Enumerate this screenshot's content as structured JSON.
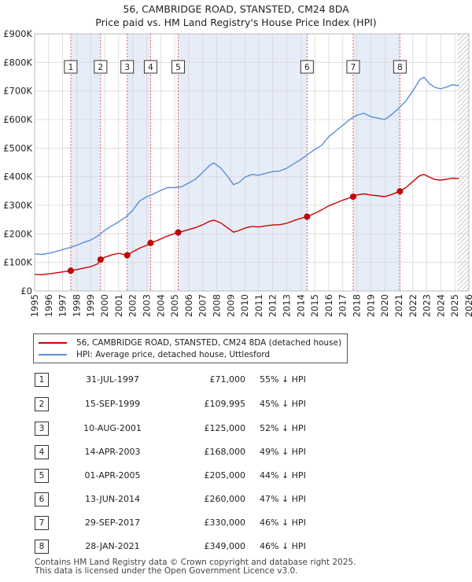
{
  "title": "56, CAMBRIDGE ROAD, STANSTED, CM24 8DA",
  "subtitle": "Price paid vs. HM Land Registry's House Price Index (HPI)",
  "legend": {
    "property": "56, CAMBRIDGE ROAD, STANSTED, CM24 8DA (detached house)",
    "hpi": "HPI: Average price, detached house, Uttlesford"
  },
  "colors": {
    "property": "#cc0000",
    "hpi": "#5b8fd4",
    "band": "#e6ecf8",
    "grid": "#d8d8d8",
    "future_hatch": "#999999"
  },
  "chart_data": {
    "type": "line",
    "title": "56, CAMBRIDGE ROAD, STANSTED, CM24 8DA",
    "subtitle": "Price paid vs. HM Land Registry's House Price Index (HPI)",
    "xlim": [
      1995,
      2026
    ],
    "ylim": [
      0,
      900000
    ],
    "x_ticks": [
      "1995",
      "1996",
      "1997",
      "1998",
      "1999",
      "2000",
      "2001",
      "2002",
      "2003",
      "2004",
      "2005",
      "2006",
      "2007",
      "2008",
      "2009",
      "2010",
      "2011",
      "2012",
      "2013",
      "2014",
      "2015",
      "2016",
      "2017",
      "2018",
      "2019",
      "2020",
      "2021",
      "2022",
      "2023",
      "2024",
      "2025",
      "2026"
    ],
    "y_ticks": [
      0,
      100000,
      200000,
      300000,
      400000,
      500000,
      600000,
      700000,
      800000,
      900000
    ],
    "y_tick_labels": [
      "£0",
      "£100K",
      "£200K",
      "£300K",
      "£400K",
      "£500K",
      "£600K",
      "£700K",
      "£800K",
      "£900K"
    ],
    "grid": true,
    "future_hatch_from": 2025.2,
    "series": [
      {
        "name": "HPI: Average price, detached house, Uttlesford",
        "color": "#5b8fd4",
        "points": [
          [
            1995.0,
            130000
          ],
          [
            1995.5,
            128000
          ],
          [
            1996.0,
            132000
          ],
          [
            1996.5,
            138000
          ],
          [
            1997.0,
            145000
          ],
          [
            1997.5,
            152000
          ],
          [
            1998.0,
            160000
          ],
          [
            1998.5,
            170000
          ],
          [
            1999.0,
            178000
          ],
          [
            1999.5,
            192000
          ],
          [
            2000.0,
            212000
          ],
          [
            2000.5,
            228000
          ],
          [
            2001.0,
            242000
          ],
          [
            2001.5,
            258000
          ],
          [
            2002.0,
            282000
          ],
          [
            2002.5,
            315000
          ],
          [
            2003.0,
            330000
          ],
          [
            2003.5,
            340000
          ],
          [
            2004.0,
            352000
          ],
          [
            2004.5,
            362000
          ],
          [
            2005.0,
            362000
          ],
          [
            2005.5,
            365000
          ],
          [
            2006.0,
            378000
          ],
          [
            2006.5,
            392000
          ],
          [
            2007.0,
            415000
          ],
          [
            2007.5,
            440000
          ],
          [
            2007.8,
            448000
          ],
          [
            2008.3,
            430000
          ],
          [
            2008.8,
            400000
          ],
          [
            2009.2,
            372000
          ],
          [
            2009.6,
            380000
          ],
          [
            2010.0,
            398000
          ],
          [
            2010.5,
            408000
          ],
          [
            2011.0,
            405000
          ],
          [
            2011.5,
            412000
          ],
          [
            2012.0,
            418000
          ],
          [
            2012.5,
            420000
          ],
          [
            2013.0,
            430000
          ],
          [
            2013.5,
            445000
          ],
          [
            2014.0,
            460000
          ],
          [
            2014.5,
            478000
          ],
          [
            2015.0,
            495000
          ],
          [
            2015.5,
            510000
          ],
          [
            2016.0,
            540000
          ],
          [
            2016.5,
            560000
          ],
          [
            2017.0,
            580000
          ],
          [
            2017.5,
            600000
          ],
          [
            2018.0,
            615000
          ],
          [
            2018.5,
            622000
          ],
          [
            2019.0,
            610000
          ],
          [
            2019.5,
            605000
          ],
          [
            2020.0,
            600000
          ],
          [
            2020.5,
            618000
          ],
          [
            2021.0,
            640000
          ],
          [
            2021.5,
            665000
          ],
          [
            2022.0,
            700000
          ],
          [
            2022.5,
            740000
          ],
          [
            2022.8,
            748000
          ],
          [
            2023.2,
            725000
          ],
          [
            2023.6,
            712000
          ],
          [
            2024.0,
            708000
          ],
          [
            2024.5,
            715000
          ],
          [
            2024.8,
            722000
          ],
          [
            2025.3,
            718000
          ]
        ]
      },
      {
        "name": "56, CAMBRIDGE ROAD, STANSTED, CM24 8DA (detached house)",
        "color": "#cc0000",
        "points": [
          [
            1995.0,
            58000
          ],
          [
            1995.5,
            57000
          ],
          [
            1996.0,
            60000
          ],
          [
            1996.5,
            63000
          ],
          [
            1997.0,
            67000
          ],
          [
            1997.58,
            71000
          ],
          [
            1998.0,
            75000
          ],
          [
            1998.5,
            80000
          ],
          [
            1999.0,
            85000
          ],
          [
            1999.5,
            95000
          ],
          [
            1999.71,
            109995
          ],
          [
            2000.0,
            118000
          ],
          [
            2000.5,
            126000
          ],
          [
            2001.0,
            132000
          ],
          [
            2001.61,
            125000
          ],
          [
            2002.0,
            137000
          ],
          [
            2002.5,
            150000
          ],
          [
            2003.0,
            160000
          ],
          [
            2003.28,
            168000
          ],
          [
            2003.5,
            172000
          ],
          [
            2004.0,
            182000
          ],
          [
            2004.5,
            193000
          ],
          [
            2005.25,
            205000
          ],
          [
            2005.5,
            208000
          ],
          [
            2006.0,
            215000
          ],
          [
            2006.5,
            222000
          ],
          [
            2007.0,
            232000
          ],
          [
            2007.5,
            244000
          ],
          [
            2007.8,
            248000
          ],
          [
            2008.3,
            238000
          ],
          [
            2008.8,
            220000
          ],
          [
            2009.2,
            206000
          ],
          [
            2009.6,
            212000
          ],
          [
            2010.0,
            220000
          ],
          [
            2010.5,
            226000
          ],
          [
            2011.0,
            224000
          ],
          [
            2011.5,
            228000
          ],
          [
            2012.0,
            231000
          ],
          [
            2012.5,
            232000
          ],
          [
            2013.0,
            237000
          ],
          [
            2013.5,
            246000
          ],
          [
            2014.0,
            254000
          ],
          [
            2014.45,
            260000
          ],
          [
            2015.0,
            272000
          ],
          [
            2015.5,
            284000
          ],
          [
            2016.0,
            298000
          ],
          [
            2016.5,
            308000
          ],
          [
            2017.0,
            318000
          ],
          [
            2017.74,
            330000
          ],
          [
            2018.0,
            336000
          ],
          [
            2018.5,
            340000
          ],
          [
            2019.0,
            336000
          ],
          [
            2019.5,
            333000
          ],
          [
            2020.0,
            330000
          ],
          [
            2020.5,
            338000
          ],
          [
            2021.08,
            349000
          ],
          [
            2021.5,
            362000
          ],
          [
            2022.0,
            383000
          ],
          [
            2022.5,
            404000
          ],
          [
            2022.8,
            408000
          ],
          [
            2023.2,
            398000
          ],
          [
            2023.6,
            390000
          ],
          [
            2024.0,
            388000
          ],
          [
            2024.5,
            392000
          ],
          [
            2024.8,
            395000
          ],
          [
            2025.3,
            393000
          ]
        ]
      }
    ],
    "transactions": [
      {
        "n": "1",
        "x": 1997.58,
        "price": 71000
      },
      {
        "n": "2",
        "x": 1999.71,
        "price": 109995
      },
      {
        "n": "3",
        "x": 2001.61,
        "price": 125000
      },
      {
        "n": "4",
        "x": 2003.28,
        "price": 168000
      },
      {
        "n": "5",
        "x": 2005.25,
        "price": 205000
      },
      {
        "n": "6",
        "x": 2014.45,
        "price": 260000
      },
      {
        "n": "7",
        "x": 2017.74,
        "price": 330000
      },
      {
        "n": "8",
        "x": 2021.08,
        "price": 349000
      }
    ]
  },
  "transactions_table": [
    {
      "n": "1",
      "date": "31-JUL-1997",
      "price": "£71,000",
      "rel": "55% ↓ HPI"
    },
    {
      "n": "2",
      "date": "15-SEP-1999",
      "price": "£109,995",
      "rel": "45% ↓ HPI"
    },
    {
      "n": "3",
      "date": "10-AUG-2001",
      "price": "£125,000",
      "rel": "52% ↓ HPI"
    },
    {
      "n": "4",
      "date": "14-APR-2003",
      "price": "£168,000",
      "rel": "49% ↓ HPI"
    },
    {
      "n": "5",
      "date": "01-APR-2005",
      "price": "£205,000",
      "rel": "44% ↓ HPI"
    },
    {
      "n": "6",
      "date": "13-JUN-2014",
      "price": "£260,000",
      "rel": "47% ↓ HPI"
    },
    {
      "n": "7",
      "date": "29-SEP-2017",
      "price": "£330,000",
      "rel": "46% ↓ HPI"
    },
    {
      "n": "8",
      "date": "28-JAN-2021",
      "price": "£349,000",
      "rel": "46% ↓ HPI"
    }
  ],
  "footer": {
    "line1": "Contains HM Land Registry data © Crown copyright and database right 2025.",
    "line2": "This data is licensed under the Open Government Licence v3.0."
  }
}
